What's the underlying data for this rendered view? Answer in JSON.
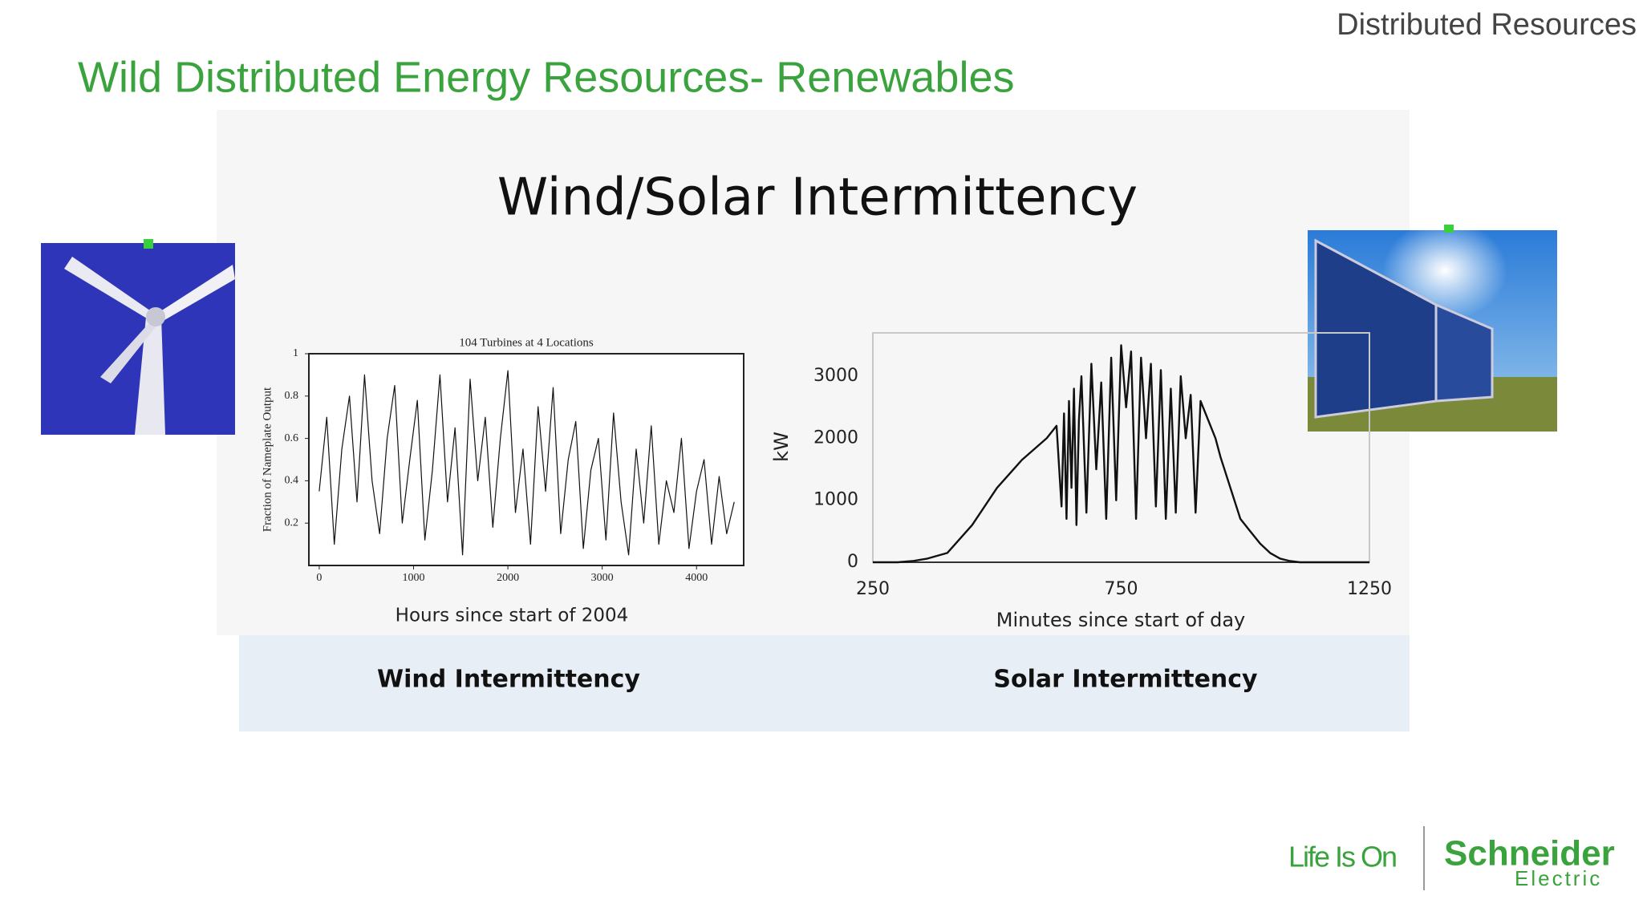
{
  "header": {
    "section": "Distributed Resources",
    "title": "Wild Distributed Energy Resources- Renewables"
  },
  "figure": {
    "title": "Wind/Solar Intermittency"
  },
  "chart_data": [
    {
      "type": "line",
      "title": "104 Turbines at 4 Locations",
      "x_label": "Hours since start of 2004",
      "y_label": "Fraction of Nameplate Output",
      "caption": "Wind Intermittency",
      "color": "#111111",
      "x": [
        0,
        80,
        160,
        240,
        320,
        400,
        480,
        560,
        640,
        720,
        800,
        880,
        960,
        1040,
        1120,
        1200,
        1280,
        1360,
        1440,
        1520,
        1600,
        1680,
        1760,
        1840,
        1920,
        2000,
        2080,
        2160,
        2240,
        2320,
        2400,
        2480,
        2560,
        2640,
        2720,
        2800,
        2880,
        2960,
        3040,
        3120,
        3200,
        3280,
        3360,
        3440,
        3520,
        3600,
        3680,
        3760,
        3840,
        3920,
        4000,
        4080,
        4160,
        4240,
        4320,
        4400
      ],
      "values": [
        0.35,
        0.7,
        0.1,
        0.55,
        0.8,
        0.3,
        0.9,
        0.4,
        0.15,
        0.6,
        0.85,
        0.2,
        0.5,
        0.78,
        0.12,
        0.45,
        0.9,
        0.3,
        0.65,
        0.05,
        0.88,
        0.4,
        0.7,
        0.18,
        0.6,
        0.92,
        0.25,
        0.55,
        0.1,
        0.75,
        0.35,
        0.84,
        0.15,
        0.5,
        0.68,
        0.08,
        0.45,
        0.6,
        0.12,
        0.72,
        0.3,
        0.05,
        0.55,
        0.2,
        0.66,
        0.1,
        0.4,
        0.25,
        0.6,
        0.08,
        0.35,
        0.5,
        0.1,
        0.42,
        0.15,
        0.3
      ],
      "xlim": [
        -110,
        4500
      ],
      "ylim": [
        0,
        1
      ],
      "xticks": [
        0,
        1000,
        2000,
        3000,
        4000
      ],
      "yticks": [
        0.2,
        0.4,
        0.6,
        0.8,
        1
      ]
    },
    {
      "type": "line",
      "x_label": "Minutes since start of day",
      "y_label": "kW",
      "caption": "Solar Intermittency",
      "color": "#111111",
      "x": [
        250,
        300,
        330,
        360,
        400,
        450,
        500,
        550,
        600,
        620,
        630,
        635,
        640,
        645,
        650,
        655,
        660,
        665,
        670,
        680,
        690,
        700,
        710,
        720,
        730,
        740,
        750,
        760,
        770,
        780,
        790,
        800,
        810,
        820,
        830,
        840,
        850,
        860,
        870,
        880,
        890,
        900,
        910,
        920,
        930,
        940,
        950,
        970,
        990,
        1010,
        1030,
        1050,
        1070,
        1090,
        1110,
        1130,
        1150,
        1250
      ],
      "values": [
        0,
        0,
        20,
        60,
        150,
        600,
        1200,
        1650,
        2000,
        2200,
        900,
        2400,
        700,
        2600,
        1200,
        2800,
        600,
        2300,
        3000,
        800,
        3200,
        1500,
        2900,
        700,
        3300,
        1000,
        3500,
        2500,
        3400,
        700,
        3300,
        2000,
        3200,
        900,
        3100,
        700,
        2800,
        800,
        3000,
        2000,
        2700,
        800,
        2600,
        2400,
        2200,
        2000,
        1700,
        1200,
        700,
        500,
        300,
        150,
        60,
        20,
        0,
        0,
        0,
        0
      ],
      "xlim": [
        250,
        1250
      ],
      "ylim": [
        0,
        3700
      ],
      "xticks": [
        250,
        750,
        1250
      ],
      "yticks": [
        0,
        1000,
        2000,
        3000
      ]
    }
  ],
  "footer": {
    "tagline": "Life Is On",
    "brand": "Schneider",
    "brand_sub": "Electric"
  }
}
